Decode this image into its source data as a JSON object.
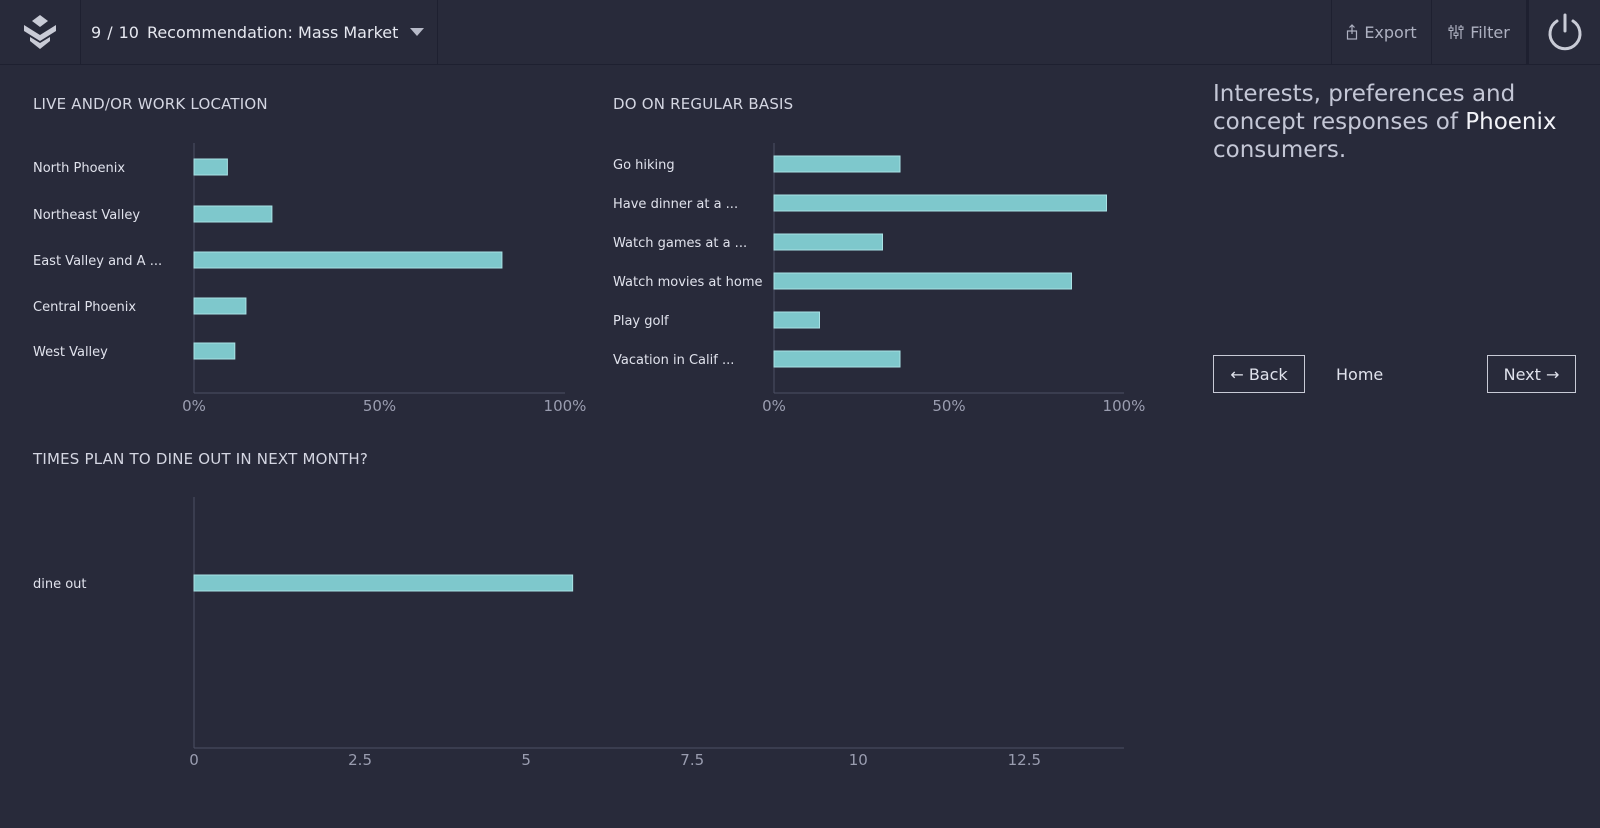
{
  "header": {
    "page_current": "9",
    "page_sep": "/",
    "page_total": "10",
    "title": "Recommendation: Mass Market",
    "export_label": "Export",
    "filter_label": "Filter"
  },
  "sidebar": {
    "heading_prefix": "Interests, preferences and concept responses of ",
    "heading_city": "Phoenix",
    "heading_suffix": " consumers.",
    "back_label": "← Back",
    "home_label": "Home",
    "next_label": "Next →"
  },
  "colors": {
    "background": "#282a3a",
    "bar": "#7ec8cc",
    "bar_border": "#a9e2e5"
  },
  "icons": {
    "logo": "lantern-logo-icon",
    "export": "export-icon",
    "filter": "filter-sliders-icon",
    "power": "power-icon",
    "caret": "caret-down-icon"
  },
  "chart_data": [
    {
      "type": "bar",
      "orientation": "horizontal",
      "title": "LIVE AND/OR WORK LOCATION",
      "categories": [
        "North Phoenix",
        "Northeast Valley",
        "East Valley and A ...",
        "Central Phoenix",
        "West Valley"
      ],
      "values": [
        9,
        21,
        83,
        14,
        11
      ],
      "xlim": [
        0,
        100
      ],
      "ticks": [
        0,
        50,
        100
      ],
      "tick_labels": [
        "0%",
        "50%",
        "100%"
      ]
    },
    {
      "type": "bar",
      "orientation": "horizontal",
      "title": "DO ON REGULAR BASIS",
      "categories": [
        "Go hiking",
        "Have dinner at a ...",
        "Watch games at a ...",
        "Watch movies at home",
        "Play golf",
        "Vacation in Calif ..."
      ],
      "values": [
        36,
        95,
        31,
        85,
        13,
        36
      ],
      "xlim": [
        0,
        100
      ],
      "ticks": [
        0,
        50,
        100
      ],
      "tick_labels": [
        "0%",
        "50%",
        "100%"
      ]
    },
    {
      "type": "bar",
      "orientation": "horizontal",
      "title": "TIMES PLAN TO DINE OUT IN NEXT MONTH?",
      "categories": [
        "dine out"
      ],
      "values": [
        5.7
      ],
      "xlim": [
        0,
        14
      ],
      "ticks": [
        0,
        2.5,
        5,
        7.5,
        10,
        12.5
      ],
      "tick_labels": [
        "0",
        "2.5",
        "5",
        "7.5",
        "10",
        "12.5"
      ]
    }
  ]
}
